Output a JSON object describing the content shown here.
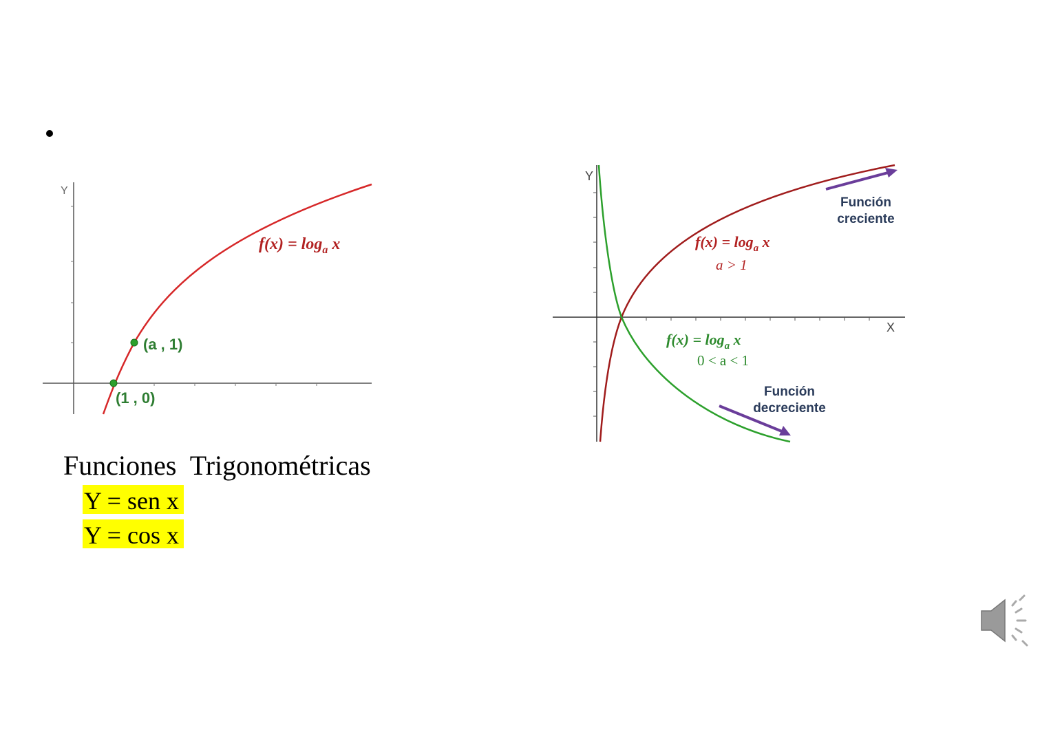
{
  "left_graph": {
    "y_axis_label": "Y",
    "curve_label": {
      "prefix": "f(x) = log",
      "sub": "a",
      "suffix": " x"
    },
    "point_a1": "(a , 1)",
    "point_10": "(1 , 0)"
  },
  "right_graph": {
    "y_axis_label": "Y",
    "x_axis_label": "X",
    "increasing_label": {
      "prefix": "f(x) = log",
      "sub": "a",
      "suffix": " x"
    },
    "increasing_condition": "a > 1",
    "decreasing_label": {
      "prefix": "f(x) = log",
      "sub": "a",
      "suffix": " x"
    },
    "decreasing_condition": "0 < a < 1",
    "increasing_note": [
      "Función",
      "creciente"
    ],
    "decreasing_note": [
      "Función",
      "decreciente"
    ]
  },
  "text": {
    "heading": "Funciones  Trigonométricas",
    "items": [
      "Y = sen x",
      "Y = cos x"
    ]
  }
}
